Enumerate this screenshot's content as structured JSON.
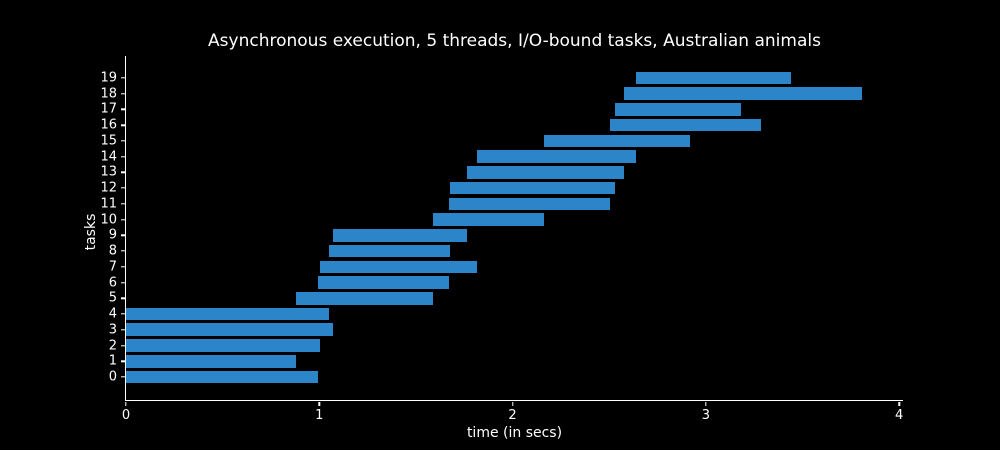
{
  "figure": {
    "background_color": "#000000",
    "text_color": "#ffffff",
    "spine_color": "#ffffff"
  },
  "chart_data": {
    "type": "bar",
    "orientation": "horizontal",
    "title": "Asynchronous execution, 5 threads, I/O-bound tasks, Australian animals",
    "xlabel": "time (in secs)",
    "ylabel": "tasks",
    "xlim": [
      0,
      4.02
    ],
    "ylim": [
      -1.46,
      20.39
    ],
    "x_ticks": [
      "0",
      "1",
      "2",
      "3",
      "4"
    ],
    "x_tick_values": [
      0,
      1,
      2,
      3,
      4
    ],
    "y_tick_labels": [
      "0",
      "1",
      "2",
      "3",
      "4",
      "5",
      "6",
      "7",
      "8",
      "9",
      "10",
      "11",
      "12",
      "13",
      "14",
      "15",
      "16",
      "17",
      "18",
      "19"
    ],
    "grid": false,
    "legend": null,
    "bar_color": "#2b85c8",
    "background_color": "#000000",
    "text_color": "#ffffff",
    "bar_height_fraction": 0.8,
    "tasks": [
      {
        "task": 0,
        "start": 0.0,
        "end": 0.995
      },
      {
        "task": 1,
        "start": 0.0,
        "end": 0.88
      },
      {
        "task": 2,
        "start": 0.0,
        "end": 1.005
      },
      {
        "task": 3,
        "start": 0.0,
        "end": 1.069
      },
      {
        "task": 4,
        "start": 0.0,
        "end": 1.048
      },
      {
        "task": 5,
        "start": 0.88,
        "end": 1.586
      },
      {
        "task": 6,
        "start": 0.995,
        "end": 1.671
      },
      {
        "task": 7,
        "start": 1.005,
        "end": 1.818
      },
      {
        "task": 8,
        "start": 1.048,
        "end": 1.677
      },
      {
        "task": 9,
        "start": 1.069,
        "end": 1.762
      },
      {
        "task": 10,
        "start": 1.586,
        "end": 2.161
      },
      {
        "task": 11,
        "start": 1.671,
        "end": 2.503
      },
      {
        "task": 12,
        "start": 1.677,
        "end": 2.531
      },
      {
        "task": 13,
        "start": 1.762,
        "end": 2.577
      },
      {
        "task": 14,
        "start": 1.818,
        "end": 2.639
      },
      {
        "task": 15,
        "start": 2.161,
        "end": 2.916
      },
      {
        "task": 16,
        "start": 2.503,
        "end": 3.283
      },
      {
        "task": 17,
        "start": 2.531,
        "end": 3.183
      },
      {
        "task": 18,
        "start": 2.577,
        "end": 3.81
      },
      {
        "task": 19,
        "start": 2.639,
        "end": 3.441
      }
    ]
  }
}
